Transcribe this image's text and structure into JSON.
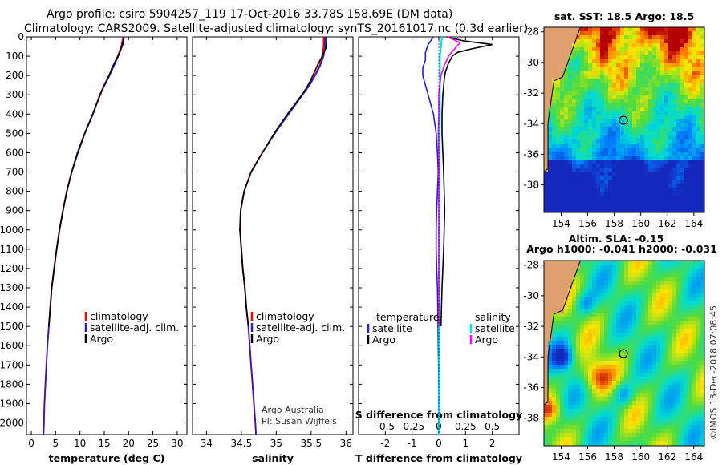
{
  "titles": {
    "line1": "Argo profile: csiro 5904257_119 17-Oct-2016 33.78S 158.69E (DM data)",
    "line2": "Climatology: CARS2009. Satellite-adjusted climatology: synTS_20161017.nc (0.3d earlier)"
  },
  "depth_ticks": [
    0,
    100,
    200,
    300,
    400,
    500,
    600,
    700,
    800,
    900,
    1000,
    1100,
    1200,
    1300,
    1400,
    1500,
    1600,
    1700,
    1800,
    1900,
    2000
  ],
  "colors": {
    "climatology": "#ff0000",
    "satellite": "#2020d0",
    "argo": "#000000",
    "sat_cyan": "#00e0ff",
    "argo_magenta": "#ff00ff"
  },
  "chart_data": [
    {
      "type": "line",
      "name": "temperature",
      "xlabel": "temperature (deg C)",
      "xlim": [
        -1,
        32
      ],
      "ylim": [
        0,
        2060
      ],
      "xticks": [
        0,
        5,
        10,
        15,
        20,
        25,
        30
      ],
      "series": [
        {
          "name": "climatology",
          "depth": [
            0,
            50,
            100,
            150,
            200,
            250,
            300,
            400,
            500,
            600,
            700,
            800,
            900,
            1000,
            1100,
            1200,
            1300,
            1400,
            1500,
            1600,
            1700,
            1800,
            1900,
            2000,
            2060
          ],
          "values": [
            18.9,
            18.5,
            17.8,
            16.9,
            16.0,
            15.0,
            14.1,
            12.7,
            11.0,
            9.5,
            8.3,
            7.3,
            6.5,
            5.8,
            5.2,
            4.7,
            4.2,
            3.9,
            3.6,
            3.3,
            3.1,
            2.9,
            2.7,
            2.6,
            2.5
          ]
        },
        {
          "name": "satellite-adj. clim.",
          "depth": [
            0,
            50,
            100,
            150,
            200,
            250,
            300,
            400,
            500,
            600,
            700,
            800,
            900,
            1000,
            1100,
            1200,
            1300,
            1400,
            1500,
            1600,
            1700,
            1800,
            1900,
            2000,
            2060
          ],
          "values": [
            19.0,
            18.6,
            17.9,
            17.0,
            16.1,
            15.1,
            14.1,
            12.7,
            11.0,
            9.5,
            8.3,
            7.3,
            6.5,
            5.8,
            5.2,
            4.7,
            4.2,
            3.9,
            3.6,
            3.3,
            3.1,
            2.9,
            2.7,
            2.6,
            2.5
          ]
        },
        {
          "name": "Argo",
          "depth": [
            0,
            40,
            80,
            120,
            160,
            200,
            250,
            300,
            400,
            500,
            600,
            700,
            800,
            900,
            1000,
            1100,
            1200,
            1300,
            1400,
            1500
          ],
          "values": [
            19.1,
            18.8,
            18.2,
            17.4,
            16.6,
            16.0,
            15.0,
            14.2,
            12.6,
            11.0,
            9.6,
            8.3,
            7.3,
            6.5,
            5.8,
            5.2,
            4.7,
            4.2,
            3.9,
            3.6
          ]
        }
      ],
      "legend": [
        "climatology",
        "satellite-adj. clim.",
        "Argo"
      ],
      "xticklabels": [
        "0",
        "5",
        "10",
        "15",
        "20",
        "25",
        "30"
      ]
    },
    {
      "type": "line",
      "name": "salinity",
      "xlabel": "salinity",
      "xlim": [
        33.8,
        36.1
      ],
      "ylim": [
        0,
        2060
      ],
      "xticks": [
        34,
        34.5,
        35,
        35.5,
        36
      ],
      "xticklabels": [
        "34",
        "34.5",
        "35",
        "35.5",
        "36"
      ],
      "series": [
        {
          "name": "climatology",
          "depth": [
            0,
            50,
            100,
            150,
            200,
            250,
            300,
            400,
            500,
            600,
            700,
            800,
            900,
            1000,
            1100,
            1200,
            1300,
            1400,
            1500,
            1600,
            1700,
            1800,
            1900,
            2000,
            2060
          ],
          "values": [
            35.68,
            35.68,
            35.66,
            35.62,
            35.55,
            35.47,
            35.37,
            35.17,
            34.98,
            34.8,
            34.64,
            34.54,
            34.49,
            34.48,
            34.5,
            34.52,
            34.55,
            34.57,
            34.6,
            34.62,
            34.64,
            34.66,
            34.68,
            34.7,
            34.71
          ]
        },
        {
          "name": "satellite-adj. clim.",
          "depth": [
            0,
            50,
            100,
            150,
            200,
            250,
            300,
            400,
            500,
            600,
            700,
            800,
            900,
            1000,
            1100,
            1200,
            1300,
            1400,
            1500,
            1600,
            1700,
            1800,
            1900,
            2000,
            2060
          ],
          "values": [
            35.7,
            35.7,
            35.68,
            35.63,
            35.56,
            35.48,
            35.38,
            35.18,
            34.98,
            34.8,
            34.64,
            34.54,
            34.49,
            34.48,
            34.5,
            34.52,
            34.55,
            34.57,
            34.6,
            34.62,
            34.64,
            34.66,
            34.68,
            34.7,
            34.71
          ]
        },
        {
          "name": "Argo",
          "depth": [
            0,
            30,
            60,
            100,
            140,
            180,
            220,
            260,
            300,
            400,
            500,
            600,
            700,
            800,
            900,
            1000,
            1100,
            1200,
            1300,
            1400,
            1500
          ],
          "values": [
            35.72,
            35.72,
            35.71,
            35.66,
            35.6,
            35.55,
            35.5,
            35.44,
            35.37,
            35.16,
            34.97,
            34.8,
            34.64,
            34.54,
            34.49,
            34.48,
            34.5,
            34.52,
            34.55,
            34.57,
            34.6
          ]
        }
      ],
      "legend": [
        "climatology",
        "satellite-adj. clim.",
        "Argo"
      ],
      "notes": [
        "Argo Australia",
        "PI: Susan Wijffels"
      ]
    },
    {
      "type": "line",
      "name": "differences",
      "xlabel": "T difference from climatology",
      "xlabel2": "S difference from climatology",
      "xlim": [
        -3,
        3
      ],
      "ylim": [
        0,
        2060
      ],
      "xticks": [
        -2,
        -1,
        0,
        1,
        2
      ],
      "xticklabels": [
        "-2",
        "-1",
        "0",
        "1",
        "2"
      ],
      "xticks2": [
        -0.5,
        -0.25,
        0,
        0.25,
        0.5
      ],
      "xticklabels2": [
        "-0.5",
        "-0.25",
        "0",
        "0.25",
        "0.5"
      ],
      "series": [
        {
          "name": "T Argo",
          "depth": [
            0,
            20,
            40,
            60,
            80,
            100,
            140,
            180,
            220,
            260,
            300,
            400,
            500,
            600,
            700,
            800,
            900,
            1000,
            1100,
            1200,
            1300,
            1400,
            1500
          ],
          "values": [
            0.3,
            0.9,
            2.0,
            1.3,
            0.7,
            0.5,
            0.35,
            0.25,
            0.2,
            0.18,
            0.15,
            0.12,
            0.12,
            0.15,
            0.18,
            0.2,
            0.22,
            0.2,
            0.18,
            0.15,
            0.12,
            0.1,
            0.08
          ]
        },
        {
          "name": "T satellite",
          "depth": [
            0,
            40,
            80,
            120,
            160,
            200,
            250,
            300,
            350,
            400,
            500,
            600,
            700,
            800,
            900,
            1000,
            1100,
            1200,
            1300,
            1400,
            1500,
            1600,
            1700,
            1800,
            1900,
            2000,
            2060
          ],
          "values": [
            -0.2,
            -0.4,
            -0.5,
            -0.5,
            -0.6,
            -0.6,
            -0.5,
            -0.4,
            -0.3,
            -0.2,
            -0.1,
            -0.05,
            -0.02,
            -0.05,
            -0.08,
            -0.1,
            -0.1,
            -0.08,
            -0.05,
            -0.04,
            -0.03,
            -0.02,
            -0.01,
            0,
            0,
            0,
            0
          ]
        },
        {
          "name": "S satellite",
          "depth": [
            0,
            50,
            100,
            200,
            300,
            400,
            500,
            600,
            800,
            1000,
            1200,
            1500,
            1800,
            2060
          ],
          "values": [
            0.03,
            0.02,
            0.01,
            0.01,
            0.01,
            0.01,
            0.005,
            0.005,
            0.004,
            0.003,
            0.002,
            0.002,
            0.002,
            0.002
          ]
        },
        {
          "name": "S Argo",
          "depth": [
            0,
            30,
            60,
            100,
            150,
            200,
            300,
            400,
            500,
            600,
            700,
            800,
            900,
            1000,
            1100,
            1200,
            1300,
            1400,
            1500
          ],
          "values": [
            0.08,
            0.2,
            0.15,
            0.09,
            0.05,
            0.02,
            0.0,
            0.0,
            -0.005,
            0,
            0,
            0,
            0,
            0,
            0,
            0,
            0,
            0,
            0
          ]
        }
      ],
      "legend_left": [
        "temperature",
        "satellite",
        "Argo"
      ],
      "legend_right": [
        "salinity",
        "satellite",
        "Argo"
      ]
    },
    {
      "type": "heatmap",
      "name": "sst-map",
      "title": "sat. SST: 18.5 Argo: 18.5",
      "xticks": [
        154,
        156,
        158,
        160,
        162,
        164
      ],
      "yticks": [
        -28,
        -30,
        -32,
        -34,
        -36,
        -38
      ],
      "xlim": [
        152.7,
        164.8
      ],
      "ylim": [
        -39.8,
        -27.7
      ],
      "marker": {
        "lon": 158.69,
        "lat": -33.78
      }
    },
    {
      "type": "heatmap",
      "name": "sla-map",
      "title": "Altim. SLA: -0.15",
      "subtitle": "Argo h1000: -0.041 h2000: -0.031",
      "xticks": [
        154,
        156,
        158,
        160,
        162,
        164
      ],
      "yticks": [
        -28,
        -30,
        -32,
        -34,
        -36,
        -38
      ],
      "xlim": [
        152.7,
        164.8
      ],
      "ylim": [
        -39.8,
        -27.7
      ],
      "marker": {
        "lon": 158.69,
        "lat": -33.78
      }
    }
  ],
  "watermark": "©IMOS 13-Dec-2018 07:08:45"
}
